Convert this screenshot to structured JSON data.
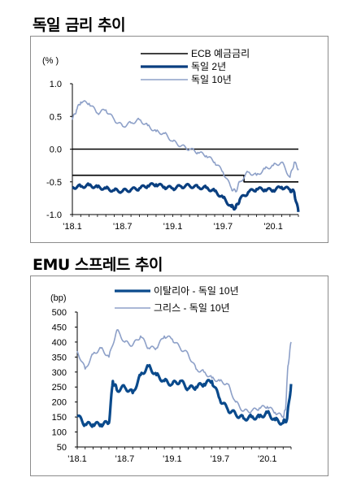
{
  "panel1": {
    "title": "독일 금리 추이"
  },
  "panel2": {
    "title": "EMU 스프레드 추이"
  },
  "chart_data": [
    {
      "type": "line",
      "title": "독일 금리 추이",
      "unit": "(% )",
      "ylim": [
        -1.0,
        1.0
      ],
      "yticks": [
        "1.0",
        "0.5",
        "0.0",
        "-0.5",
        "-1.0"
      ],
      "xlim": [
        0,
        27
      ],
      "xticks": [
        {
          "x": 0,
          "label": "'18.1"
        },
        {
          "x": 6,
          "label": "'18.7"
        },
        {
          "x": 12,
          "label": "'19.1"
        },
        {
          "x": 18,
          "label": "'19.7"
        },
        {
          "x": 24,
          "label": "'20.1"
        }
      ],
      "legend_position": "top-right",
      "series": [
        {
          "name": "ECB 예금금리",
          "color": "#000000",
          "step": true,
          "x": [
            0,
            20.5,
            20.5,
            27
          ],
          "values": [
            -0.4,
            -0.4,
            -0.5,
            -0.5
          ]
        },
        {
          "name": "독일 2년",
          "color": "#0a3f80",
          "x": [
            0,
            1,
            2,
            3,
            4,
            5,
            6,
            7,
            8,
            9,
            10,
            11,
            12,
            13,
            14,
            15,
            16,
            17,
            18,
            19,
            19.5,
            20,
            21,
            22,
            23,
            24,
            25,
            26,
            26.5,
            27
          ],
          "values": [
            -0.58,
            -0.57,
            -0.55,
            -0.58,
            -0.6,
            -0.63,
            -0.64,
            -0.62,
            -0.6,
            -0.56,
            -0.54,
            -0.58,
            -0.6,
            -0.57,
            -0.56,
            -0.58,
            -0.59,
            -0.64,
            -0.74,
            -0.88,
            -0.9,
            -0.77,
            -0.66,
            -0.61,
            -0.62,
            -0.63,
            -0.58,
            -0.62,
            -0.66,
            -0.96
          ]
        },
        {
          "name": "독일 10년",
          "color": "#8da0c8",
          "x": [
            0,
            0.5,
            1,
            2,
            3,
            4,
            5,
            6,
            7,
            8,
            9,
            10,
            11,
            12,
            13,
            14,
            15,
            16,
            17,
            18,
            19,
            19.5,
            20,
            21,
            22,
            23,
            24,
            25,
            26,
            26.5,
            27
          ],
          "values": [
            0.45,
            0.6,
            0.72,
            0.7,
            0.55,
            0.6,
            0.45,
            0.35,
            0.4,
            0.45,
            0.36,
            0.27,
            0.24,
            0.12,
            0.05,
            0.0,
            -0.05,
            -0.1,
            -0.2,
            -0.35,
            -0.6,
            -0.65,
            -0.5,
            -0.35,
            -0.4,
            -0.3,
            -0.25,
            -0.2,
            -0.43,
            -0.2,
            -0.3
          ]
        }
      ]
    },
    {
      "type": "line",
      "title": "EMU 스프레드 추이",
      "unit": "(bp)",
      "ylim": [
        50,
        500
      ],
      "yticks": [
        "500",
        "450",
        "400",
        "350",
        "300",
        "250",
        "200",
        "150",
        "100",
        "50"
      ],
      "xlim": [
        0,
        27
      ],
      "xticks": [
        {
          "x": 0,
          "label": "'18.1"
        },
        {
          "x": 6,
          "label": "'18.7"
        },
        {
          "x": 12,
          "label": "'19.1"
        },
        {
          "x": 18,
          "label": "'19.7"
        },
        {
          "x": 24,
          "label": "'20.1"
        }
      ],
      "legend_position": "top",
      "series": [
        {
          "name": "이탈리아 - 독일 10년",
          "color": "#0a4a8c",
          "x": [
            0,
            1,
            2,
            3,
            4,
            4.5,
            5,
            6,
            7,
            8,
            9,
            10,
            11,
            12,
            13,
            14,
            15,
            16,
            17,
            18,
            19,
            20,
            21,
            22,
            23,
            24,
            25,
            26,
            26.5,
            27
          ],
          "values": [
            155,
            125,
            125,
            125,
            130,
            270,
            240,
            250,
            230,
            290,
            320,
            290,
            270,
            260,
            270,
            245,
            250,
            260,
            270,
            210,
            175,
            160,
            145,
            150,
            150,
            165,
            140,
            130,
            145,
            260
          ]
        },
        {
          "name": "그리스 - 독일 10년",
          "color": "#8da0c8",
          "x": [
            0,
            1,
            2,
            3,
            4,
            5,
            6,
            7,
            8,
            9,
            10,
            11,
            12,
            13,
            14,
            15,
            16,
            17,
            18,
            19,
            20,
            21,
            22,
            23,
            24,
            25,
            26,
            26.3,
            26.6,
            27
          ],
          "values": [
            370,
            310,
            360,
            380,
            350,
            440,
            400,
            390,
            420,
            380,
            380,
            420,
            410,
            380,
            360,
            310,
            300,
            280,
            270,
            260,
            200,
            170,
            170,
            180,
            185,
            165,
            150,
            175,
            320,
            400
          ]
        }
      ]
    }
  ]
}
